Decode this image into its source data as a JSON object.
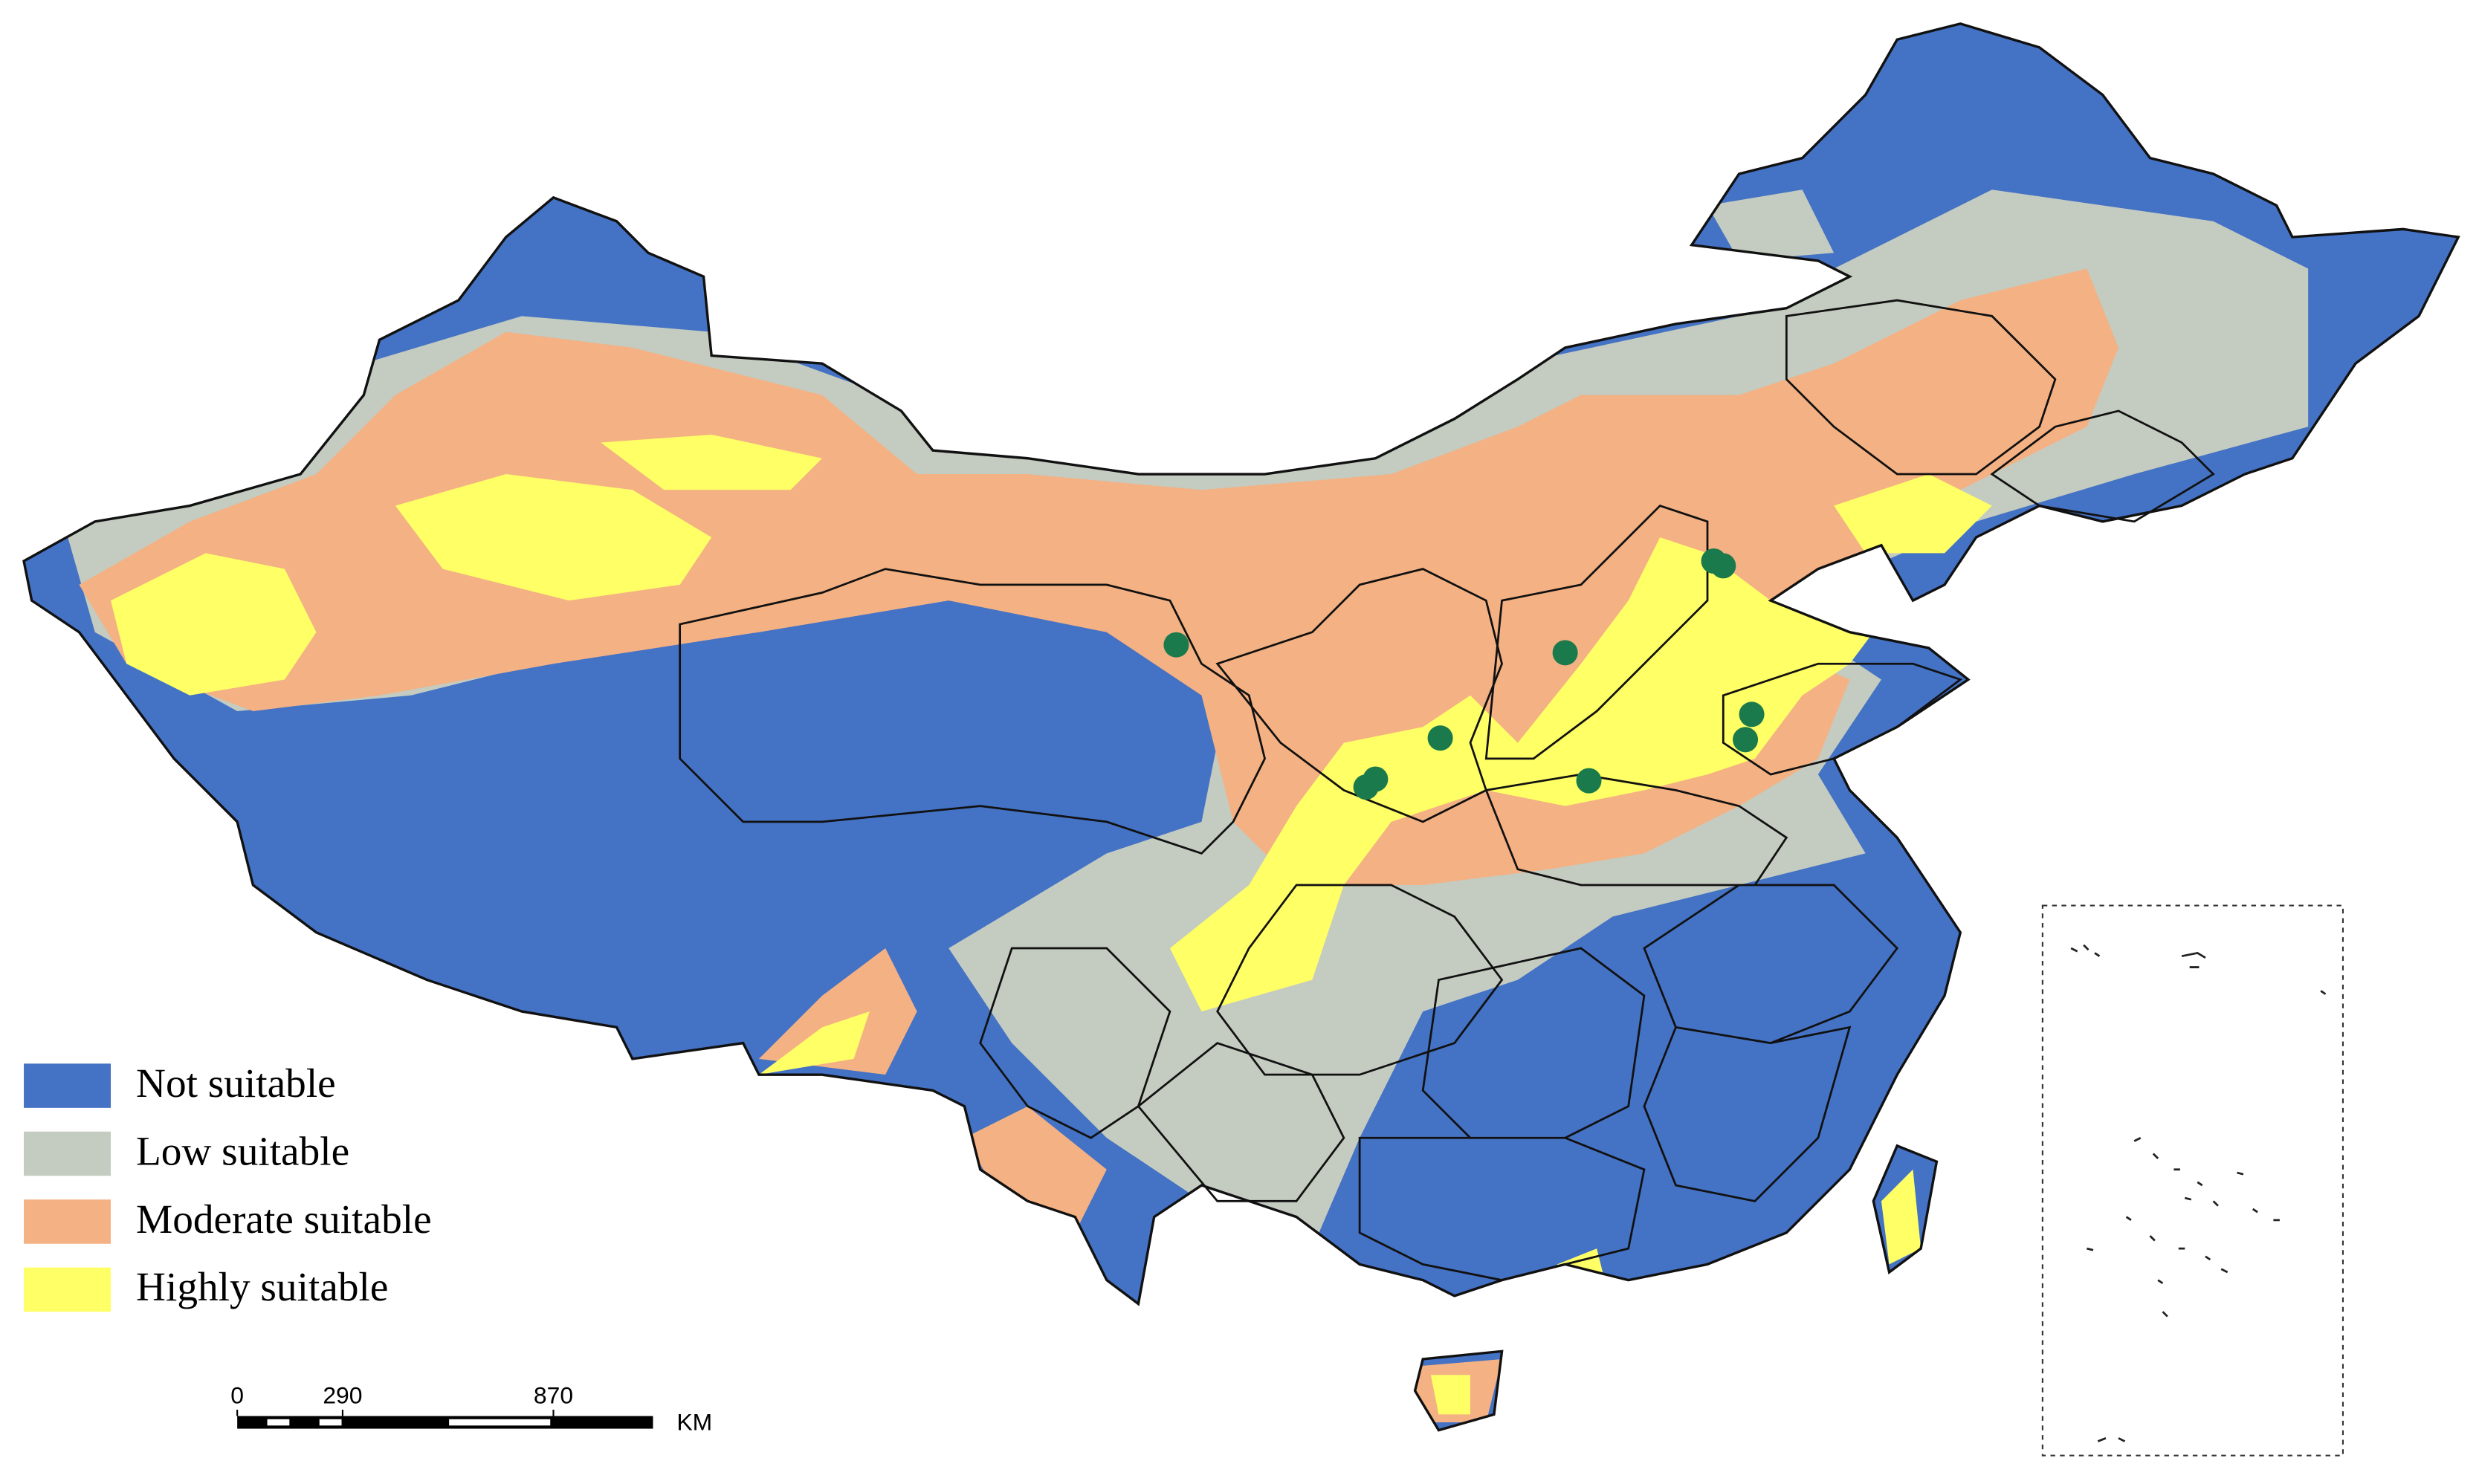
{
  "legend": {
    "items": [
      {
        "label": "Not suitable",
        "color": "#4472c4"
      },
      {
        "label": "Low suitable",
        "color": "#c4cbc0"
      },
      {
        "label": "Moderate suitable",
        "color": "#f4b183"
      },
      {
        "label": "Highly suitable",
        "color": "#ffff66"
      }
    ]
  },
  "scale_bar": {
    "ticks": [
      0,
      290,
      870
    ],
    "unit": "KM"
  }
}
